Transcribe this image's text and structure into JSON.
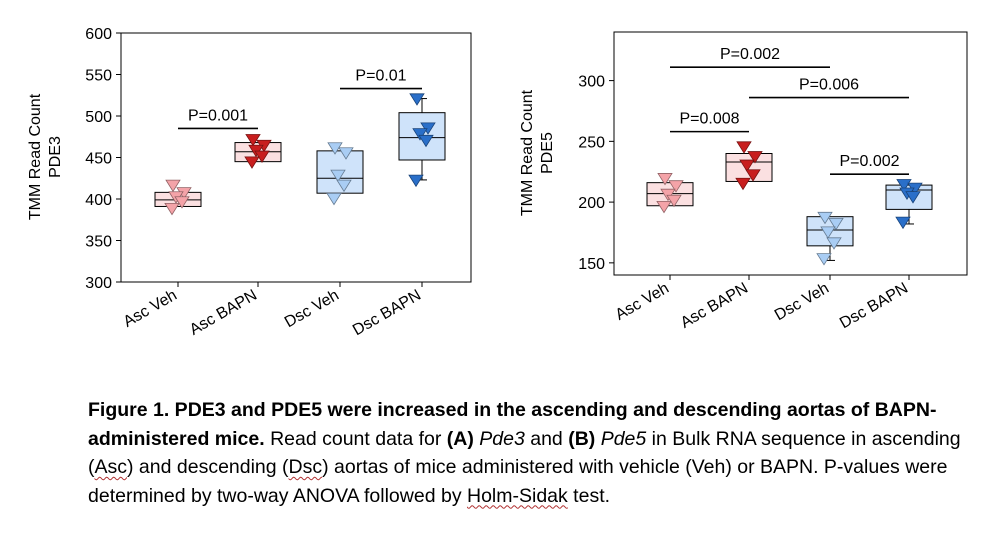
{
  "chart_data": [
    {
      "type": "box",
      "panel": "A",
      "ylabel_line1": "TMM Read Count",
      "ylabel_line2": "PDE3",
      "ylim": [
        300,
        600
      ],
      "yticks": [
        "300",
        "350",
        "400",
        "450",
        "500",
        "550",
        "600"
      ],
      "categories": [
        "Asc Veh",
        "Asc BAPN",
        "Dsc Veh",
        "Dsc BAPN"
      ],
      "boxes": [
        {
          "group": "Asc Veh",
          "q1": 391,
          "median": 399,
          "q3": 408,
          "whisker_low": 391,
          "whisker_high": 408,
          "points": [
            416,
            407,
            402,
            396,
            388
          ],
          "color": "#f4a3a8",
          "fill": "#fbe0e1"
        },
        {
          "group": "Asc BAPN",
          "q1": 445,
          "median": 457,
          "q3": 468,
          "whisker_low": 445,
          "whisker_high": 468,
          "points": [
            471,
            464,
            458,
            451,
            444
          ],
          "color": "#c81e1e",
          "fill": "#fbe0e1"
        },
        {
          "group": "Dsc Veh",
          "q1": 407,
          "median": 425,
          "q3": 458,
          "whisker_low": 407,
          "whisker_high": 458,
          "points": [
            461,
            455,
            428,
            416,
            400
          ],
          "color": "#a9cdf4",
          "fill": "#cfe3fa"
        },
        {
          "group": "Dsc BAPN",
          "q1": 447,
          "median": 474,
          "q3": 504,
          "whisker_low": 423,
          "whisker_high": 521,
          "points": [
            520,
            485,
            478,
            470,
            422
          ],
          "color": "#2a6fc9",
          "fill": "#cfe3fa"
        }
      ],
      "annotations": [
        {
          "text": "P=0.001",
          "from": "Asc Veh",
          "to": "Asc BAPN",
          "y": 485
        },
        {
          "text": "P=0.01",
          "from": "Dsc Veh",
          "to": "Dsc BAPN",
          "y": 533
        }
      ]
    },
    {
      "type": "box",
      "panel": "B",
      "ylabel_line1": "TMM Read Count",
      "ylabel_line2": "PDE5",
      "ylim": [
        140,
        340
      ],
      "yticks": [
        "150",
        "200",
        "250",
        "300"
      ],
      "categories": [
        "Asc Veh",
        "Asc BAPN",
        "Dsc Veh",
        "Dsc BAPN"
      ],
      "boxes": [
        {
          "group": "Asc Veh",
          "q1": 197,
          "median": 207,
          "q3": 216,
          "whisker_low": 197,
          "whisker_high": 216,
          "points": [
            219,
            213,
            206,
            201,
            196
          ],
          "color": "#f4a3a8",
          "fill": "#fbe0e1"
        },
        {
          "group": "Asc BAPN",
          "q1": 217,
          "median": 233,
          "q3": 240,
          "whisker_low": 217,
          "whisker_high": 240,
          "points": [
            245,
            237,
            230,
            222,
            215
          ],
          "color": "#c81e1e",
          "fill": "#fbe0e1"
        },
        {
          "group": "Dsc Veh",
          "q1": 164,
          "median": 177,
          "q3": 188,
          "whisker_low": 152,
          "whisker_high": 188,
          "points": [
            187,
            182,
            175,
            166,
            153
          ],
          "color": "#a9cdf4",
          "fill": "#cfe3fa"
        },
        {
          "group": "Dsc BAPN",
          "q1": 194,
          "median": 210,
          "q3": 214,
          "whisker_low": 182,
          "whisker_high": 214,
          "points": [
            214,
            211,
            207,
            204,
            183
          ],
          "color": "#2a6fc9",
          "fill": "#cfe3fa"
        }
      ],
      "annotations": [
        {
          "text": "P=0.002",
          "from": "Asc Veh",
          "to": "Dsc Veh",
          "y": 311
        },
        {
          "text": "P=0.006",
          "from": "Asc BAPN",
          "to": "Dsc BAPN",
          "y": 286
        },
        {
          "text": "P=0.008",
          "from": "Asc Veh",
          "to": "Asc BAPN",
          "y": 258
        },
        {
          "text": "P=0.002",
          "from": "Dsc Veh",
          "to": "Dsc BAPN",
          "y": 223
        }
      ]
    }
  ],
  "caption": {
    "title": "Figure 1. PDE3 and PDE5 were increased in the ascending and descending aortas of BAPN-administered mice.",
    "t1": " Read count data for ",
    "label_a": "(A)",
    "sp1": " ",
    "gene_a": "Pde3",
    "t2": " and ",
    "label_b": "(B)",
    "sp2": " ",
    "gene_b": "Pde5",
    "t3": " in Bulk RNA sequence in ascending (",
    "asc": "Asc",
    "t4": ") and descending (",
    "dsc": "Dsc",
    "t5": ") aortas of mice administered with vehicle (Veh) or BAPN. P-values were determined by two-way ANOVA followed by ",
    "holm": "Holm-Sidak",
    "t6": " test."
  }
}
